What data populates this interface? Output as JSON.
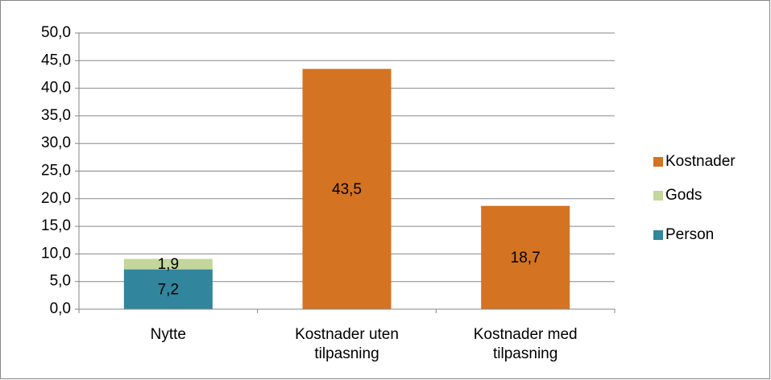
{
  "chart_data": {
    "type": "stacked_bar",
    "categories": [
      "Nytte",
      "Kostnader uten tilpasning",
      "Kostnader med tilpasning"
    ],
    "series": [
      {
        "name": "Person",
        "color": "#31859c",
        "values": [
          7.2,
          null,
          null
        ],
        "value_labels": [
          "7,2",
          null,
          null
        ]
      },
      {
        "name": "Gods",
        "color": "#c3d69b",
        "values": [
          1.9,
          null,
          null
        ],
        "value_labels": [
          "1,9",
          null,
          null
        ]
      },
      {
        "name": "Kostnader",
        "color": "#d47321",
        "values": [
          null,
          43.5,
          18.7
        ],
        "value_labels": [
          null,
          "43,5",
          "18,7"
        ]
      }
    ],
    "ylim": [
      0,
      50
    ],
    "yticks": [
      {
        "value": 0,
        "label": "0,0"
      },
      {
        "value": 5,
        "label": "5,0"
      },
      {
        "value": 10,
        "label": "10,0"
      },
      {
        "value": 15,
        "label": "15,0"
      },
      {
        "value": 20,
        "label": "20,0"
      },
      {
        "value": 25,
        "label": "25,0"
      },
      {
        "value": 30,
        "label": "30,0"
      },
      {
        "value": 35,
        "label": "35,0"
      },
      {
        "value": 40,
        "label": "40,0"
      },
      {
        "value": 45,
        "label": "45,0"
      },
      {
        "value": 50,
        "label": "50,0"
      }
    ],
    "grid": true,
    "legend": "right"
  }
}
